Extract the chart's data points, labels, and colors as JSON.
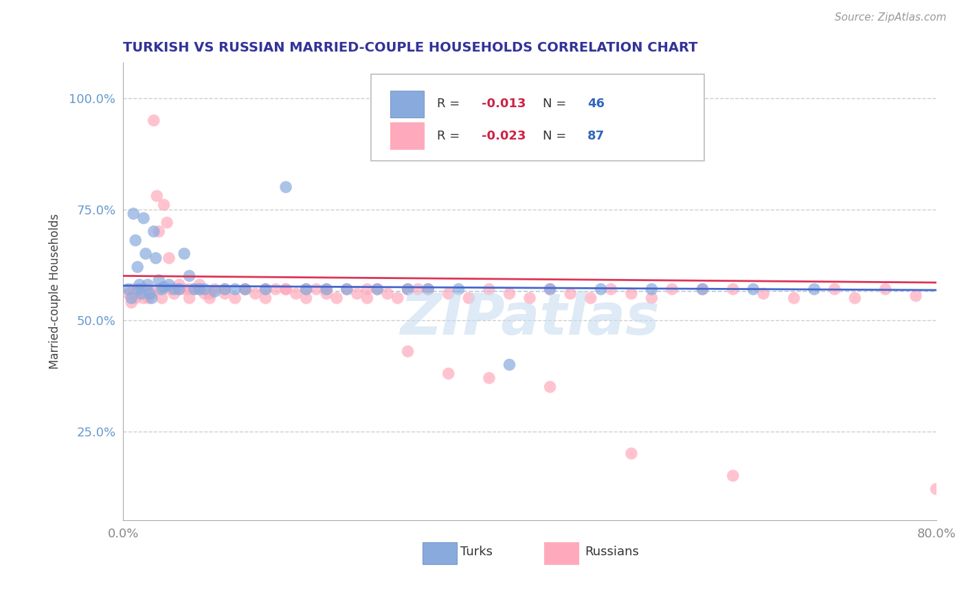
{
  "title": "TURKISH VS RUSSIAN MARRIED-COUPLE HOUSEHOLDS CORRELATION CHART",
  "source_text": "Source: ZipAtlas.com",
  "ylabel": "Married-couple Households",
  "xlim": [
    0.0,
    80.0
  ],
  "ylim": [
    5.0,
    108.0
  ],
  "xticks": [
    0.0,
    80.0
  ],
  "xticklabels": [
    "0.0%",
    "80.0%"
  ],
  "yticks": [
    25.0,
    50.0,
    75.0,
    100.0
  ],
  "yticklabels": [
    "25.0%",
    "50.0%",
    "75.0%",
    "100.0%"
  ],
  "grid_color": "#cccccc",
  "background_color": "#ffffff",
  "R_turks": -0.013,
  "N_turks": 46,
  "R_russians": -0.023,
  "N_russians": 87,
  "turks_color": "#88aadd",
  "russians_color": "#ffaabc",
  "turks_line_color": "#4466cc",
  "russians_line_color": "#dd3355",
  "watermark_color": "#c8ddf0",
  "watermark_text": "ZIPatlas",
  "title_color": "#333399",
  "source_color": "#999999",
  "ylabel_color": "#444444",
  "yticklabel_color": "#6699cc",
  "xticklabel_color": "#888888",
  "dashed_line_color": "#aabbcc",
  "legend_R_color": "#cc2244",
  "legend_N_color": "#3366bb"
}
